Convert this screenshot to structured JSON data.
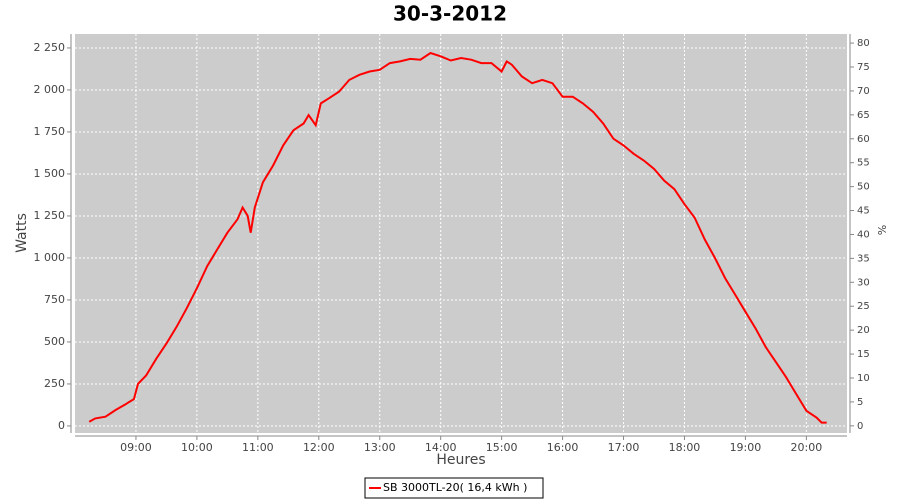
{
  "chart_data": {
    "type": "line",
    "title": "30-3-2012",
    "x_label": "Heures",
    "y_label": "Watts",
    "y2_label": "%",
    "x": [
      494,
      500,
      510,
      520,
      530,
      538,
      542,
      550,
      560,
      570,
      580,
      590,
      600,
      610,
      620,
      630,
      640,
      645,
      650,
      653,
      657,
      665,
      675,
      685,
      695,
      705,
      710,
      717,
      722,
      730,
      740,
      750,
      760,
      770,
      780,
      790,
      800,
      810,
      820,
      830,
      840,
      850,
      860,
      870,
      880,
      890,
      900,
      905,
      910,
      920,
      930,
      940,
      950,
      960,
      970,
      980,
      990,
      1000,
      1010,
      1020,
      1030,
      1040,
      1050,
      1060,
      1070,
      1080,
      1090,
      1100,
      1110,
      1120,
      1130,
      1140,
      1150,
      1160,
      1170,
      1180,
      1190,
      1200,
      1210,
      1215,
      1220
    ],
    "series": [
      {
        "name": "SB 3000TL-20( 16,4 kWh )",
        "color": "#ff0000",
        "values": [
          25,
          45,
          55,
          95,
          130,
          160,
          250,
          300,
          400,
          490,
          590,
          700,
          820,
          950,
          1050,
          1150,
          1230,
          1300,
          1250,
          1150,
          1300,
          1450,
          1550,
          1670,
          1760,
          1800,
          1850,
          1790,
          1920,
          1950,
          1990,
          2060,
          2090,
          2110,
          2120,
          2160,
          2170,
          2185,
          2180,
          2220,
          2200,
          2175,
          2190,
          2180,
          2160,
          2160,
          2110,
          2170,
          2150,
          2080,
          2040,
          2060,
          2040,
          1960,
          1960,
          1920,
          1870,
          1800,
          1710,
          1670,
          1620,
          1580,
          1530,
          1460,
          1410,
          1320,
          1240,
          1110,
          1000,
          880,
          780,
          680,
          580,
          470,
          380,
          290,
          190,
          90,
          50,
          20,
          20
        ]
      }
    ],
    "xlim": [
      480,
      1240
    ],
    "xticks": [
      {
        "value": 540,
        "label": "09:00"
      },
      {
        "value": 600,
        "label": "10:00"
      },
      {
        "value": 660,
        "label": "11:00"
      },
      {
        "value": 720,
        "label": "12:00"
      },
      {
        "value": 780,
        "label": "13:00"
      },
      {
        "value": 840,
        "label": "14:00"
      },
      {
        "value": 900,
        "label": "15:00"
      },
      {
        "value": 960,
        "label": "16:00"
      },
      {
        "value": 1020,
        "label": "17:00"
      },
      {
        "value": 1080,
        "label": "18:00"
      },
      {
        "value": 1140,
        "label": "19:00"
      },
      {
        "value": 1200,
        "label": "20:00"
      }
    ],
    "ylim": [
      -42,
      2333
    ],
    "yticks": [
      0,
      250,
      500,
      750,
      {
        "value": 1000,
        "label": "1 000"
      },
      {
        "value": 1250,
        "label": "1 250"
      },
      {
        "value": 1500,
        "label": "1 500"
      },
      {
        "value": 1750,
        "label": "1 750"
      },
      {
        "value": 2000,
        "label": "2 000"
      },
      {
        "value": 2250,
        "label": "2 250"
      }
    ],
    "y2lim": [
      -1.5,
      81.9
    ],
    "y2ticks": [
      0,
      5,
      10,
      15,
      20,
      25,
      30,
      35,
      40,
      45,
      50,
      55,
      60,
      65,
      70,
      75,
      80
    ],
    "grid": true,
    "legend": "bottom"
  }
}
